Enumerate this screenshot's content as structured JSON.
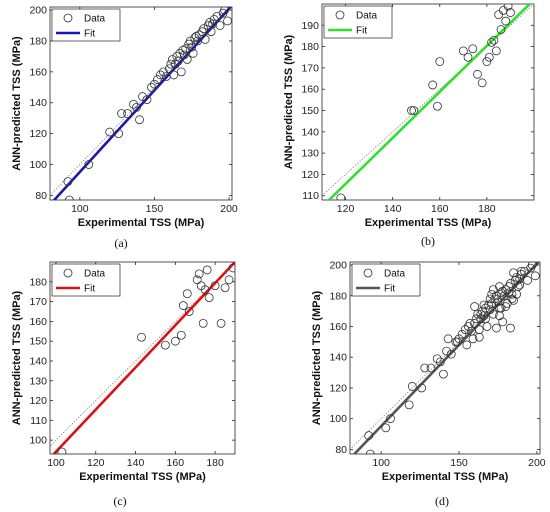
{
  "chart_data": [
    {
      "panel_label": "(a)",
      "type": "scatter",
      "xlabel": "Experimental TSS (MPa)",
      "ylabel": "ANN-predicted TSS (MPa)",
      "xlim": [
        80,
        202
      ],
      "ylim": [
        77,
        202
      ],
      "xticks": [
        100,
        150,
        200
      ],
      "yticks": [
        80,
        100,
        120,
        140,
        160,
        180,
        200
      ],
      "legend": {
        "data": "Data",
        "fit": "Fit",
        "placement": "top-left"
      },
      "fit_color": "#1a1ab0",
      "fit_line": [
        [
          80,
          74
        ],
        [
          202,
          203
        ]
      ],
      "points": [
        [
          92,
          89
        ],
        [
          93,
          77
        ],
        [
          106,
          100
        ],
        [
          120,
          121
        ],
        [
          126,
          120
        ],
        [
          128,
          133
        ],
        [
          132,
          133
        ],
        [
          136,
          139
        ],
        [
          138,
          137
        ],
        [
          140,
          129
        ],
        [
          142,
          144
        ],
        [
          145,
          142
        ],
        [
          148,
          150
        ],
        [
          150,
          152
        ],
        [
          152,
          155
        ],
        [
          154,
          158
        ],
        [
          156,
          160
        ],
        [
          158,
          157
        ],
        [
          160,
          162
        ],
        [
          161,
          165
        ],
        [
          162,
          168
        ],
        [
          163,
          158
        ],
        [
          164,
          165
        ],
        [
          165,
          170
        ],
        [
          166,
          167
        ],
        [
          167,
          172
        ],
        [
          168,
          160
        ],
        [
          169,
          174
        ],
        [
          170,
          171
        ],
        [
          171,
          175
        ],
        [
          172,
          168
        ],
        [
          173,
          178
        ],
        [
          174,
          180
        ],
        [
          175,
          176
        ],
        [
          176,
          172
        ],
        [
          177,
          182
        ],
        [
          178,
          183
        ],
        [
          179,
          180
        ],
        [
          180,
          184
        ],
        [
          182,
          186
        ],
        [
          183,
          188
        ],
        [
          184,
          181
        ],
        [
          186,
          190
        ],
        [
          187,
          192
        ],
        [
          188,
          186
        ],
        [
          189,
          191
        ],
        [
          190,
          194
        ],
        [
          192,
          196
        ],
        [
          194,
          190
        ],
        [
          196,
          198
        ],
        [
          197,
          200
        ],
        [
          199,
          193
        ]
      ]
    },
    {
      "panel_label": "(b)",
      "type": "scatter",
      "xlabel": "Experimental TSS (MPa)",
      "ylabel": "ANN-predicted TSS (MPa)",
      "xlim": [
        110,
        200
      ],
      "ylim": [
        108,
        200
      ],
      "xticks": [
        120,
        140,
        160,
        180
      ],
      "yticks": [
        110,
        120,
        130,
        140,
        150,
        160,
        170,
        180,
        190
      ],
      "legend": {
        "data": "Data",
        "fit": "Fit",
        "placement": "top-left"
      },
      "fit_color": "#2fe02f",
      "fit_line": [
        [
          113,
          108
        ],
        [
          200,
          202
        ]
      ],
      "points": [
        [
          118,
          109
        ],
        [
          148,
          150
        ],
        [
          149,
          150
        ],
        [
          157,
          162
        ],
        [
          159,
          152
        ],
        [
          160,
          173
        ],
        [
          170,
          178
        ],
        [
          172,
          175
        ],
        [
          174,
          179
        ],
        [
          176,
          167
        ],
        [
          178,
          163
        ],
        [
          180,
          173
        ],
        [
          181,
          175
        ],
        [
          182,
          182
        ],
        [
          183,
          183
        ],
        [
          184,
          178
        ],
        [
          185,
          195
        ],
        [
          186,
          188
        ],
        [
          187,
          197
        ],
        [
          188,
          192
        ],
        [
          189,
          199
        ],
        [
          190,
          196
        ]
      ]
    },
    {
      "panel_label": "(c)",
      "type": "scatter",
      "xlabel": "Experimental TSS (MPa)",
      "ylabel": "ANN-predicted TSS (MPa)",
      "xlim": [
        97,
        190
      ],
      "ylim": [
        93,
        190
      ],
      "xticks": [
        100,
        120,
        140,
        160,
        180
      ],
      "yticks": [
        100,
        110,
        120,
        130,
        140,
        150,
        160,
        170,
        180
      ],
      "legend": {
        "data": "Data",
        "fit": "Fit",
        "placement": "top-left"
      },
      "fit_color": "#e01010",
      "fit_line": [
        [
          98,
          92
        ],
        [
          190,
          190
        ]
      ],
      "points": [
        [
          103,
          94
        ],
        [
          143,
          152
        ],
        [
          155,
          148
        ],
        [
          160,
          150
        ],
        [
          163,
          153
        ],
        [
          164,
          168
        ],
        [
          166,
          174
        ],
        [
          167,
          165
        ],
        [
          171,
          181
        ],
        [
          172,
          184
        ],
        [
          173,
          178
        ],
        [
          174,
          159
        ],
        [
          175,
          176
        ],
        [
          176,
          186
        ],
        [
          177,
          172
        ],
        [
          180,
          178
        ],
        [
          183,
          159
        ],
        [
          185,
          177
        ],
        [
          187,
          181
        ],
        [
          189,
          187
        ]
      ]
    },
    {
      "panel_label": "(d)",
      "type": "scatter",
      "xlabel": "Experimental TSS (MPa)",
      "ylabel": "ANN-predicted TSS (MPa)",
      "xlim": [
        80,
        202
      ],
      "ylim": [
        77,
        202
      ],
      "xticks": [
        100,
        150,
        200
      ],
      "yticks": [
        80,
        100,
        120,
        140,
        160,
        180,
        200
      ],
      "legend": {
        "data": "Data",
        "fit": "Fit",
        "placement": "top-left"
      },
      "fit_color": "#555555",
      "fit_line": [
        [
          80,
          74
        ],
        [
          202,
          203
        ]
      ],
      "points": [
        [
          92,
          89
        ],
        [
          93,
          77
        ],
        [
          103,
          94
        ],
        [
          106,
          100
        ],
        [
          118,
          109
        ],
        [
          120,
          121
        ],
        [
          126,
          120
        ],
        [
          128,
          133
        ],
        [
          132,
          133
        ],
        [
          136,
          139
        ],
        [
          138,
          137
        ],
        [
          140,
          129
        ],
        [
          142,
          144
        ],
        [
          143,
          152
        ],
        [
          145,
          142
        ],
        [
          148,
          150
        ],
        [
          149,
          150
        ],
        [
          150,
          152
        ],
        [
          152,
          155
        ],
        [
          154,
          158
        ],
        [
          155,
          148
        ],
        [
          156,
          160
        ],
        [
          157,
          162
        ],
        [
          158,
          157
        ],
        [
          159,
          152
        ],
        [
          160,
          162
        ],
        [
          160,
          173
        ],
        [
          161,
          165
        ],
        [
          162,
          168
        ],
        [
          163,
          158
        ],
        [
          163,
          153
        ],
        [
          164,
          165
        ],
        [
          164,
          168
        ],
        [
          165,
          170
        ],
        [
          166,
          167
        ],
        [
          166,
          174
        ],
        [
          167,
          172
        ],
        [
          167,
          165
        ],
        [
          168,
          160
        ],
        [
          169,
          174
        ],
        [
          170,
          171
        ],
        [
          170,
          178
        ],
        [
          171,
          175
        ],
        [
          171,
          181
        ],
        [
          172,
          168
        ],
        [
          172,
          184
        ],
        [
          173,
          178
        ],
        [
          174,
          180
        ],
        [
          174,
          159
        ],
        [
          175,
          176
        ],
        [
          176,
          172
        ],
        [
          176,
          186
        ],
        [
          176,
          167
        ],
        [
          177,
          182
        ],
        [
          177,
          172
        ],
        [
          178,
          183
        ],
        [
          178,
          163
        ],
        [
          179,
          180
        ],
        [
          180,
          184
        ],
        [
          180,
          173
        ],
        [
          181,
          175
        ],
        [
          182,
          186
        ],
        [
          182,
          182
        ],
        [
          183,
          188
        ],
        [
          183,
          159
        ],
        [
          184,
          181
        ],
        [
          184,
          178
        ],
        [
          185,
          195
        ],
        [
          185,
          177
        ],
        [
          186,
          190
        ],
        [
          187,
          192
        ],
        [
          187,
          181
        ],
        [
          188,
          186
        ],
        [
          189,
          191
        ],
        [
          189,
          187
        ],
        [
          190,
          194
        ],
        [
          190,
          196
        ],
        [
          192,
          196
        ],
        [
          194,
          190
        ],
        [
          196,
          198
        ],
        [
          197,
          200
        ],
        [
          199,
          193
        ]
      ]
    }
  ]
}
